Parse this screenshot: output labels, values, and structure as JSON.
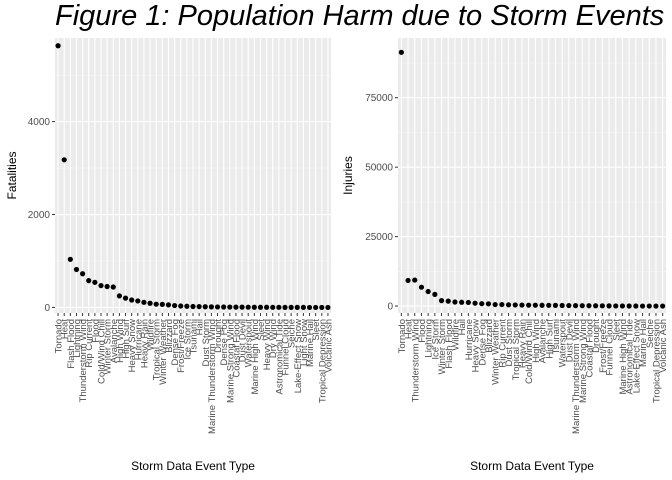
{
  "figure": {
    "title": "Figure 1: Population Harm due to Storm Events"
  },
  "chart_data": [
    {
      "type": "scatter",
      "xlabel": "Storm Data Event Type",
      "ylabel": "Fatalities",
      "ylim": [
        -120,
        5800
      ],
      "yticks": [
        0,
        2000,
        4000
      ],
      "ytick_labels": [
        "0",
        "2000",
        "4000"
      ],
      "grid": true,
      "categories": [
        "Tornado",
        "Heat",
        "Flash Flood",
        "Lightning",
        "Thunderstorm Wind",
        "Rip Current",
        "Flood",
        "Cold/Wind Chill",
        "Winter Storm",
        "Avalanche",
        "High Wind",
        "High Surf",
        "Heavy Snow",
        "Hurricane",
        "Heavy Rain",
        "Wildfire",
        "Tropical Storm",
        "Winter Weather",
        "Blizzard",
        "Dense Fog",
        "Frost/Freeze",
        "Ice Storm",
        "Tsunami",
        "Hail",
        "Dust Storm",
        "Marine Thunderstorm Wind",
        "Drought",
        "Dense Fog",
        "Marine Strong Wind",
        "Coastal Flood",
        "Dust Devil",
        "Waterspout",
        "Marine High Wind",
        "Sleet",
        "Heavy Wind",
        "Dry Wind",
        "Astronomical Tide",
        "Funnel Cloud",
        "Seiche",
        "Lake-Effect Snow",
        "Light Snow",
        "Marine Hail",
        "Sleet",
        "Tropical Depression",
        "Volcanic Ash"
      ],
      "values": [
        5633,
        3178,
        1035,
        817,
        725,
        577,
        540,
        470,
        450,
        440,
        248,
        200,
        160,
        140,
        110,
        90,
        70,
        65,
        55,
        40,
        30,
        25,
        20,
        18,
        15,
        12,
        10,
        9,
        8,
        7,
        6,
        5,
        4,
        3,
        3,
        2,
        2,
        1,
        1,
        1,
        1,
        0,
        0,
        0,
        0
      ]
    },
    {
      "type": "scatter",
      "xlabel": "Storm Data Event Type",
      "ylabel": "Injuries",
      "ylim": [
        -2500,
        96500
      ],
      "yticks": [
        0,
        25000,
        50000,
        75000
      ],
      "ytick_labels": [
        "0",
        "25000",
        "50000",
        "75000"
      ],
      "grid": true,
      "categories": [
        "Tornado",
        "Heat",
        "Thunderstorm Wind",
        "Flood",
        "Lightning",
        "Ice Storm",
        "Winter Storm",
        "Flash Flood",
        "Wildfire",
        "Hail",
        "Hurricane",
        "Heavy Snow",
        "Dense Fog",
        "Blizzard",
        "Winter Weather",
        "Rip Current",
        "Dust Storm",
        "Tropical Storm",
        "Heavy Rain",
        "Cold/Wind Chill",
        "High Wind",
        "Avalanche",
        "High Surf",
        "Tsunami",
        "Waterspout",
        "Dust Devil",
        "Marine Thunderstorm Wind",
        "Marine Strong Wind",
        "Coastal Flood",
        "Drought",
        "Frost/Freeze",
        "Funnel Cloud",
        "Sleet",
        "Marine High Wind",
        "Astronomical Tide",
        "Lake-Effect Snow",
        "Marine Hail",
        "Seiche",
        "Tropical Depression",
        "Volcanic Ash"
      ],
      "values": [
        91346,
        9224,
        9353,
        6791,
        5230,
        4200,
        1950,
        1780,
        1450,
        1360,
        1300,
        1030,
        850,
        800,
        540,
        530,
        440,
        390,
        350,
        320,
        300,
        280,
        260,
        240,
        200,
        180,
        160,
        140,
        120,
        100,
        80,
        60,
        40,
        30,
        20,
        10,
        5,
        3,
        1,
        0
      ]
    }
  ]
}
